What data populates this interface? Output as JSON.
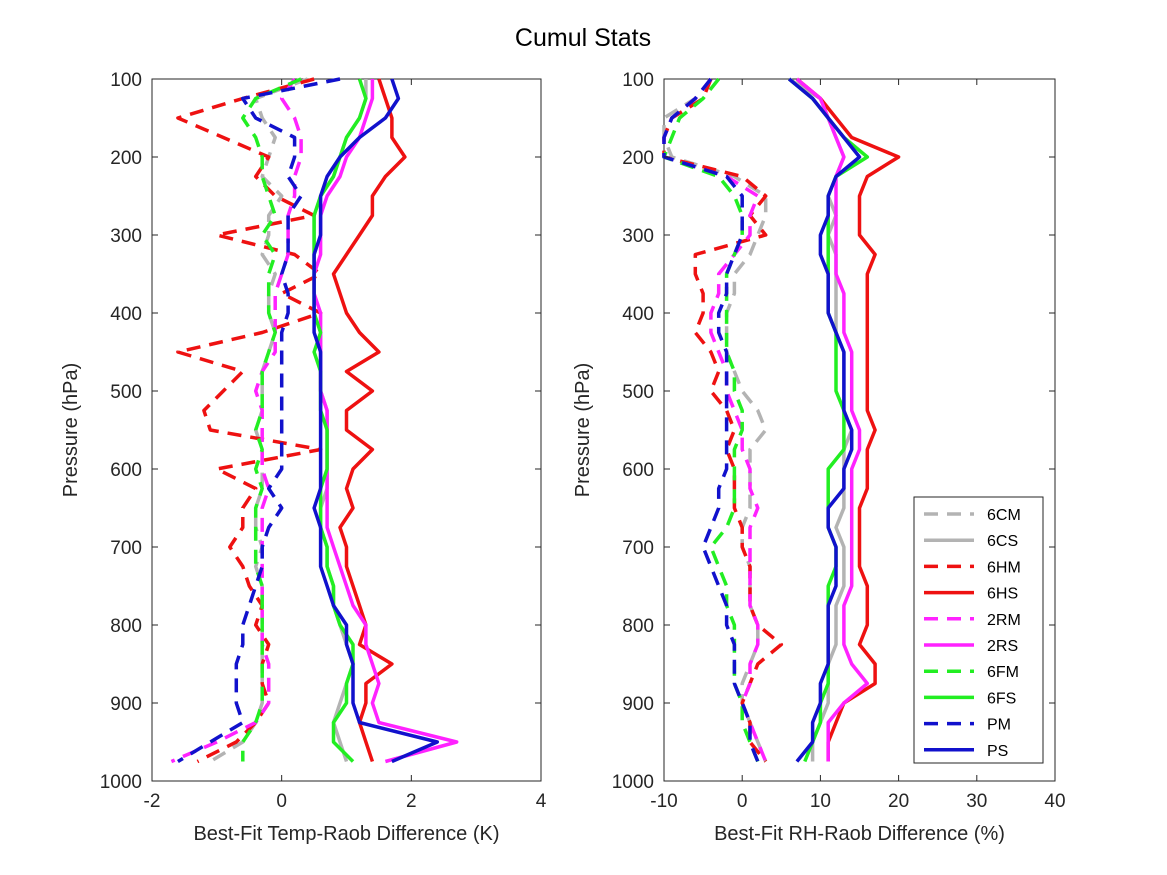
{
  "chart_data": {
    "title": "Cumul Stats",
    "y_levels": [
      100,
      125,
      150,
      175,
      200,
      225,
      250,
      275,
      300,
      325,
      350,
      375,
      400,
      425,
      450,
      475,
      500,
      525,
      550,
      575,
      600,
      625,
      650,
      675,
      700,
      725,
      750,
      775,
      800,
      825,
      850,
      875,
      900,
      925,
      950,
      975
    ],
    "styles": {
      "6CM": {
        "color": "#b3b3b3",
        "dash": true
      },
      "6CS": {
        "color": "#b3b3b3",
        "dash": false
      },
      "6HM": {
        "color": "#ee1111",
        "dash": true
      },
      "6HS": {
        "color": "#ee1111",
        "dash": false
      },
      "2RM": {
        "color": "#ff22ff",
        "dash": true
      },
      "2RS": {
        "color": "#ff22ff",
        "dash": false
      },
      "6FM": {
        "color": "#22ee22",
        "dash": true
      },
      "6FS": {
        "color": "#22ee22",
        "dash": false
      },
      "PM": {
        "color": "#1111cc",
        "dash": true
      },
      "PS": {
        "color": "#1111cc",
        "dash": false
      }
    },
    "legend": [
      "6CM",
      "6CS",
      "6HM",
      "6HS",
      "2RM",
      "2RS",
      "6FM",
      "6FS",
      "PM",
      "PS"
    ],
    "panels": [
      {
        "type": "line",
        "xlabel": "Best-Fit Temp-Raob Difference (K)",
        "ylabel": "Pressure (hPa)",
        "xlim": [
          -2,
          4
        ],
        "ylim": [
          100,
          1000
        ],
        "y_reversed": true,
        "xticks": [
          -2,
          0,
          2,
          4
        ],
        "yticks": [
          100,
          200,
          300,
          400,
          500,
          600,
          700,
          800,
          900,
          1000
        ],
        "series": [
          {
            "name": "6CM",
            "values": [
              0.4,
              -0.4,
              -0.3,
              -0.1,
              -0.2,
              -0.3,
              0.0,
              -0.2,
              -0.2,
              -0.3,
              -0.1,
              -0.2,
              -0.2,
              -0.1,
              -0.2,
              -0.3,
              -0.3,
              -0.3,
              -0.4,
              -0.3,
              -0.3,
              -0.3,
              -0.4,
              -0.4,
              -0.3,
              -0.4,
              -0.3,
              -0.3,
              -0.3,
              -0.3,
              -0.3,
              -0.3,
              -0.3,
              -0.4,
              -0.6,
              -1.1
            ]
          },
          {
            "name": "6CS",
            "values": [
              1.3,
              1.3,
              1.2,
              1.0,
              0.9,
              0.8,
              0.6,
              0.5,
              0.5,
              0.5,
              0.5,
              0.5,
              0.5,
              0.6,
              0.6,
              0.6,
              0.6,
              0.7,
              0.7,
              0.7,
              0.7,
              0.7,
              0.6,
              0.6,
              0.7,
              0.7,
              0.8,
              0.8,
              0.9,
              1.0,
              1.1,
              1.0,
              0.9,
              0.8,
              0.9,
              1.0
            ]
          },
          {
            "name": "6HM",
            "values": [
              0.5,
              -0.6,
              -1.6,
              -0.9,
              -0.2,
              -0.4,
              -0.1,
              0.5,
              -1.0,
              0.2,
              0.6,
              0.0,
              0.6,
              -0.3,
              -1.6,
              -0.6,
              -0.9,
              -1.2,
              -1.1,
              0.6,
              -1.0,
              -0.4,
              -0.6,
              -0.6,
              -0.8,
              -0.6,
              -0.5,
              -0.3,
              -0.4,
              -0.2,
              -0.3,
              -0.3,
              -0.2,
              -0.4,
              -0.7,
              -1.3
            ]
          },
          {
            "name": "6HS",
            "values": [
              1.5,
              1.6,
              1.7,
              1.7,
              1.9,
              1.6,
              1.4,
              1.4,
              1.2,
              1.0,
              0.8,
              0.9,
              1.0,
              1.2,
              1.5,
              1.0,
              1.4,
              1.0,
              1.0,
              1.4,
              1.1,
              1.0,
              1.1,
              0.9,
              1.0,
              1.0,
              1.1,
              1.2,
              1.3,
              1.2,
              1.7,
              1.3,
              1.3,
              1.2,
              1.3,
              1.4
            ]
          },
          {
            "name": "2RM",
            "values": [
              0.2,
              0.0,
              0.2,
              0.3,
              0.3,
              0.2,
              0.2,
              0.1,
              0.1,
              0.1,
              0.0,
              -0.1,
              -0.1,
              -0.1,
              -0.1,
              -0.3,
              -0.4,
              -0.3,
              -0.3,
              -0.3,
              -0.3,
              -0.2,
              -0.3,
              -0.3,
              -0.3,
              -0.3,
              -0.3,
              -0.3,
              -0.3,
              -0.3,
              -0.2,
              -0.2,
              -0.2,
              -0.4,
              -1.0,
              -1.7
            ]
          },
          {
            "name": "2RS",
            "values": [
              1.4,
              1.4,
              1.3,
              1.2,
              1.0,
              0.9,
              0.7,
              0.6,
              0.6,
              0.6,
              0.5,
              0.5,
              0.6,
              0.6,
              0.6,
              0.6,
              0.6,
              0.7,
              0.7,
              0.7,
              0.7,
              0.7,
              0.7,
              0.7,
              0.8,
              0.9,
              1.0,
              1.1,
              1.3,
              1.3,
              1.4,
              1.5,
              1.4,
              1.5,
              2.7,
              1.6
            ]
          },
          {
            "name": "6FM",
            "values": [
              0.3,
              -0.4,
              -0.6,
              -0.4,
              -0.3,
              -0.3,
              -0.2,
              -0.1,
              -0.3,
              -0.1,
              -0.2,
              -0.2,
              -0.2,
              -0.1,
              -0.2,
              -0.3,
              -0.3,
              -0.3,
              -0.4,
              -0.3,
              -0.4,
              -0.3,
              -0.4,
              -0.4,
              -0.4,
              -0.4,
              -0.3,
              -0.3,
              -0.3,
              -0.3,
              -0.3,
              -0.3,
              -0.3,
              -0.4,
              -0.6,
              -0.6
            ]
          },
          {
            "name": "6FS",
            "values": [
              1.2,
              1.3,
              1.2,
              1.0,
              0.9,
              0.8,
              0.6,
              0.5,
              0.5,
              0.5,
              0.5,
              0.5,
              0.5,
              0.6,
              0.5,
              0.6,
              0.6,
              0.6,
              0.7,
              0.7,
              0.7,
              0.6,
              0.6,
              0.6,
              0.7,
              0.7,
              0.8,
              0.8,
              0.9,
              1.1,
              1.1,
              1.0,
              1.0,
              0.8,
              0.8,
              1.1
            ]
          },
          {
            "name": "PM",
            "values": [
              0.9,
              -0.6,
              -0.4,
              0.2,
              0.2,
              0.1,
              0.3,
              0.1,
              0.1,
              0.1,
              0.0,
              0.1,
              0.1,
              0.0,
              0.0,
              0.0,
              0.0,
              0.0,
              0.0,
              0.0,
              0.0,
              -0.2,
              0.0,
              -0.2,
              -0.3,
              -0.3,
              -0.4,
              -0.5,
              -0.6,
              -0.6,
              -0.7,
              -0.7,
              -0.7,
              -0.6,
              -1.1,
              -1.6
            ]
          },
          {
            "name": "PS",
            "values": [
              1.7,
              1.8,
              1.6,
              1.2,
              0.9,
              0.7,
              0.6,
              0.6,
              0.6,
              0.5,
              0.5,
              0.5,
              0.5,
              0.5,
              0.6,
              0.6,
              0.6,
              0.6,
              0.6,
              0.6,
              0.6,
              0.6,
              0.5,
              0.6,
              0.6,
              0.6,
              0.7,
              0.8,
              1.0,
              1.0,
              1.1,
              1.1,
              1.1,
              1.2,
              2.4,
              1.7
            ]
          }
        ]
      },
      {
        "type": "line",
        "xlabel": "Best-Fit RH-Raob Difference (%)",
        "ylabel": "Pressure (hPa)",
        "xlim": [
          -10,
          40
        ],
        "ylim": [
          100,
          1000
        ],
        "y_reversed": true,
        "xticks": [
          -10,
          0,
          10,
          20,
          30,
          40
        ],
        "yticks": [
          100,
          200,
          300,
          400,
          500,
          600,
          700,
          800,
          900,
          1000
        ],
        "series": [
          {
            "name": "6CM",
            "values": [
              -4,
              -6,
              -10,
              -10,
              -9,
              -1,
              3,
              3,
              2,
              1,
              -1,
              -1,
              -2,
              -2,
              -2,
              -1,
              0,
              2,
              3,
              1,
              1,
              1,
              1,
              0,
              0,
              1,
              1,
              1,
              2,
              2,
              1,
              0,
              0,
              1,
              2,
              3
            ]
          },
          {
            "name": "6CS",
            "values": [
              6,
              10,
              11,
              12,
              13,
              12,
              11,
              12,
              11,
              12,
              12,
              12,
              12,
              12,
              13,
              13,
              13,
              13,
              14,
              13,
              13,
              13,
              13,
              12,
              13,
              13,
              13,
              12,
              12,
              12,
              11,
              11,
              11,
              10,
              9,
              9
            ]
          },
          {
            "name": "6HM",
            "values": [
              -4,
              -5,
              -9,
              -10,
              -10,
              0,
              3,
              1,
              3,
              -6,
              -6,
              -5,
              -5,
              -6,
              -4,
              -3,
              -4,
              -2,
              -1,
              -2,
              -1,
              -1,
              -1,
              0,
              0,
              1,
              1,
              1,
              2,
              5,
              2,
              1,
              0,
              1,
              1,
              3
            ]
          },
          {
            "name": "6HS",
            "values": [
              7,
              10,
              12,
              14,
              20,
              16,
              15,
              15,
              15,
              17,
              16,
              16,
              16,
              16,
              16,
              16,
              16,
              16,
              17,
              16,
              16,
              16,
              15,
              15,
              15,
              15,
              16,
              16,
              16,
              15,
              17,
              17,
              13,
              12,
              11,
              11
            ]
          },
          {
            "name": "2RM",
            "values": [
              -4,
              -6,
              -9,
              -10,
              -10,
              -2,
              2,
              1,
              1,
              -1,
              -3,
              -3,
              -4,
              -4,
              -3,
              -2,
              -2,
              -1,
              0,
              0,
              1,
              1,
              2,
              1,
              1,
              1,
              1,
              1,
              2,
              2,
              1,
              1,
              0,
              1,
              2,
              3
            ]
          },
          {
            "name": "2RS",
            "values": [
              7,
              10,
              11,
              12,
              13,
              12,
              12,
              12,
              12,
              12,
              12,
              13,
              13,
              13,
              14,
              14,
              14,
              14,
              15,
              15,
              14,
              14,
              14,
              14,
              14,
              14,
              14,
              13,
              13,
              13,
              14,
              16,
              13,
              11,
              11,
              11
            ]
          },
          {
            "name": "6FM",
            "values": [
              -3,
              -5,
              -8,
              -9,
              -10,
              -3,
              -1,
              0,
              0,
              -1,
              -2,
              -2,
              -2,
              -2,
              -2,
              -1,
              -1,
              0,
              0,
              -1,
              -1,
              -1,
              -1,
              -2,
              -4,
              -3,
              -2,
              -2,
              -1,
              -1,
              -1,
              -1,
              0,
              0,
              1,
              2
            ]
          },
          {
            "name": "6FS",
            "values": [
              6,
              9,
              11,
              13,
              16,
              12,
              11,
              11,
              11,
              11,
              11,
              11,
              11,
              12,
              12,
              12,
              12,
              13,
              13,
              13,
              11,
              11,
              11,
              11,
              12,
              12,
              11,
              11,
              11,
              11,
              11,
              11,
              10,
              10,
              9,
              8
            ]
          },
          {
            "name": "PM",
            "values": [
              -4,
              -6,
              -9,
              -10,
              -10,
              -2,
              0,
              0,
              0,
              -1,
              -2,
              -2,
              -3,
              -3,
              -2,
              -2,
              -2,
              -2,
              -2,
              -2,
              -2,
              -3,
              -3,
              -4,
              -5,
              -4,
              -3,
              -2,
              -2,
              -1,
              -1,
              -1,
              0,
              1,
              1,
              2
            ]
          },
          {
            "name": "PS",
            "values": [
              6,
              9,
              11,
              13,
              15,
              12,
              11,
              11,
              10,
              10,
              11,
              11,
              11,
              12,
              13,
              13,
              13,
              13,
              14,
              14,
              13,
              13,
              11,
              11,
              12,
              12,
              12,
              11,
              11,
              11,
              11,
              10,
              10,
              9,
              9,
              7
            ]
          }
        ]
      }
    ]
  }
}
